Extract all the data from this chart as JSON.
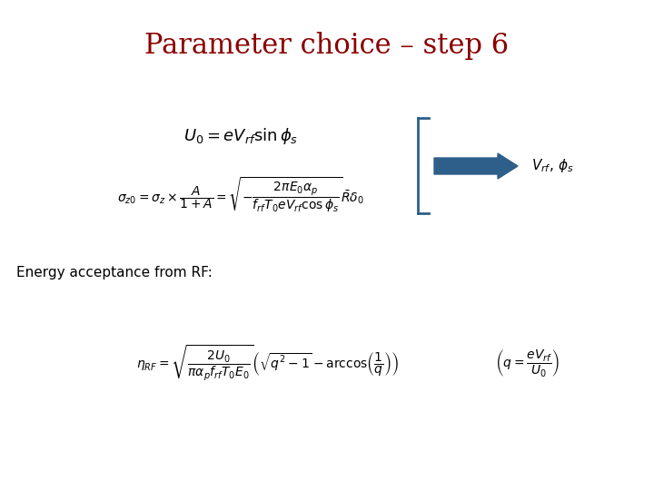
{
  "title": "Parameter choice – step 6",
  "title_color": "#8B0000",
  "title_fontsize": 22,
  "background_color": "#ffffff",
  "eq1": "$U_0 = eV_{rf} \\sin\\phi_s$",
  "eq2": "$\\sigma_{z0} = \\sigma_z \\times\\dfrac{A}{1+A} = \\sqrt{-\\dfrac{2\\pi E_0\\alpha_p}{f_{rf}T_0 eV_{rf}\\cos\\phi_s}}\\bar{R}\\delta_0$",
  "label_vrf": "$V_{rf},\\, \\phi_s$",
  "text_energy": "Energy acceptance from RF:",
  "eq3": "$\\eta_{RF} = \\sqrt{\\dfrac{2U_0}{\\pi\\alpha_p f_{rf}T_0 E_0}}\\left(\\sqrt{q^2-1}-\\arccos\\!\\left(\\dfrac{1}{q}\\right)\\right)$",
  "eq4": "$\\left(q = \\dfrac{eV_{rf}}{U_0}\\right)$",
  "arrow_color": "#2E5F8A",
  "bracket_color": "#2E5F8A"
}
